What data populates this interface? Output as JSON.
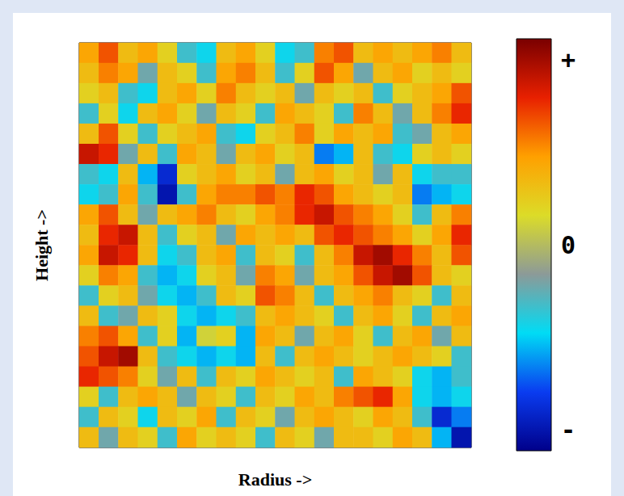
{
  "chart_data": {
    "type": "heatmap",
    "xlabel": "Radius ->",
    "ylabel": "Height ->",
    "tick_labels": false,
    "cells": [
      [
        0.4,
        0.6,
        0.3,
        0.4,
        0.2,
        -0.3,
        -0.4,
        0.3,
        0.4,
        0.2,
        -0.4,
        -0.3,
        0.5,
        0.6,
        0.3,
        0.4,
        0.3,
        0.4,
        0.5,
        0.3
      ],
      [
        0.3,
        0.5,
        0.4,
        -0.2,
        0.3,
        0.2,
        -0.3,
        0.4,
        0.5,
        0.3,
        -0.3,
        0.2,
        0.6,
        0.4,
        -0.2,
        0.3,
        0.4,
        0.2,
        0.3,
        0.2
      ],
      [
        0.2,
        0.3,
        -0.3,
        -0.4,
        0.3,
        0.4,
        0.2,
        0.5,
        0.3,
        0.2,
        0.3,
        -0.2,
        0.3,
        0.2,
        0.3,
        -0.3,
        0.2,
        0.3,
        0.4,
        0.6
      ],
      [
        -0.3,
        0.2,
        -0.4,
        0.3,
        0.4,
        0.2,
        -0.2,
        0.3,
        0.2,
        -0.3,
        0.4,
        0.3,
        0.2,
        -0.3,
        0.5,
        0.3,
        -0.2,
        0.3,
        0.5,
        0.7
      ],
      [
        0.3,
        0.6,
        0.2,
        -0.3,
        0.2,
        0.3,
        0.4,
        -0.3,
        -0.4,
        0.2,
        0.3,
        0.5,
        0.2,
        0.4,
        0.3,
        0.4,
        -0.3,
        -0.2,
        0.3,
        0.4
      ],
      [
        0.8,
        0.7,
        -0.2,
        0.3,
        -0.3,
        0.4,
        0.3,
        -0.2,
        0.3,
        0.4,
        0.2,
        0.3,
        -0.6,
        -0.5,
        0.3,
        -0.3,
        -0.4,
        0.2,
        0.3,
        0.2
      ],
      [
        -0.3,
        -0.4,
        0.3,
        -0.5,
        -0.8,
        0.2,
        0.3,
        0.4,
        0.2,
        0.3,
        -0.2,
        0.3,
        0.4,
        0.2,
        0.3,
        -0.2,
        0.3,
        -0.4,
        -0.3,
        -0.3
      ],
      [
        -0.4,
        -0.3,
        0.4,
        -0.3,
        -0.9,
        -0.3,
        0.4,
        0.5,
        0.5,
        0.6,
        0.5,
        0.7,
        0.6,
        0.4,
        0.3,
        0.2,
        0.3,
        -0.6,
        -0.5,
        -0.4
      ],
      [
        0.4,
        0.6,
        0.3,
        -0.2,
        0.3,
        0.4,
        0.5,
        0.3,
        0.2,
        0.4,
        0.5,
        0.7,
        0.8,
        0.6,
        0.5,
        0.4,
        0.2,
        -0.3,
        0.3,
        0.5
      ],
      [
        0.3,
        0.7,
        0.8,
        0.3,
        -0.3,
        0.2,
        0.3,
        -0.2,
        0.4,
        0.3,
        0.4,
        0.3,
        0.6,
        0.7,
        0.6,
        0.5,
        0.4,
        0.2,
        0.4,
        0.7
      ],
      [
        0.4,
        0.8,
        0.7,
        0.3,
        -0.4,
        -0.3,
        0.3,
        0.4,
        -0.3,
        0.3,
        0.2,
        -0.3,
        0.3,
        0.5,
        0.8,
        0.9,
        0.7,
        0.5,
        0.3,
        0.6
      ],
      [
        0.2,
        0.5,
        0.4,
        -0.3,
        -0.5,
        -0.4,
        0.2,
        0.3,
        -0.2,
        0.5,
        0.4,
        -0.2,
        0.3,
        0.4,
        0.6,
        0.8,
        0.9,
        0.6,
        0.3,
        0.2
      ],
      [
        -0.3,
        0.2,
        0.3,
        -0.2,
        -0.4,
        -0.5,
        -0.3,
        0.3,
        0.2,
        0.6,
        0.5,
        0.3,
        -0.3,
        0.3,
        0.4,
        0.5,
        0.3,
        0.2,
        -0.3,
        0.3
      ],
      [
        0.3,
        -0.3,
        -0.2,
        0.3,
        0.2,
        -0.4,
        -0.5,
        -0.4,
        -0.3,
        0.3,
        0.4,
        0.3,
        0.2,
        -0.3,
        0.3,
        0.4,
        0.2,
        -0.3,
        0.3,
        0.4
      ],
      [
        0.5,
        0.6,
        0.4,
        -0.3,
        0.2,
        -0.5,
        0.1,
        0.2,
        -0.5,
        0.4,
        0.3,
        -0.2,
        0.3,
        0.4,
        0.2,
        -0.3,
        0.3,
        0.4,
        -0.2,
        0.3
      ],
      [
        0.6,
        0.8,
        0.9,
        0.3,
        -0.3,
        -0.4,
        -0.5,
        -0.4,
        -0.5,
        0.3,
        -0.3,
        0.3,
        0.4,
        0.3,
        0.2,
        0.3,
        0.4,
        0.3,
        0.2,
        -0.3
      ],
      [
        0.7,
        0.6,
        0.5,
        0.2,
        -0.2,
        0.3,
        -0.3,
        0.3,
        0.2,
        0.4,
        0.3,
        0.2,
        0.3,
        -0.3,
        0.4,
        0.3,
        0.2,
        -0.4,
        -0.5,
        -0.3
      ],
      [
        0.2,
        -0.3,
        0.3,
        0.4,
        0.3,
        -0.2,
        0.3,
        0.2,
        -0.3,
        0.3,
        0.2,
        0.4,
        0.3,
        0.5,
        0.6,
        0.7,
        0.4,
        -0.4,
        -0.5,
        -0.4
      ],
      [
        -0.3,
        0.3,
        0.2,
        -0.4,
        0.3,
        0.2,
        0.4,
        -0.3,
        0.3,
        0.2,
        -0.2,
        0.3,
        0.4,
        0.3,
        0.2,
        0.4,
        0.3,
        -0.3,
        -0.8,
        -0.6
      ],
      [
        0.3,
        -0.2,
        0.3,
        0.2,
        -0.3,
        0.4,
        0.2,
        0.3,
        0.2,
        -0.3,
        0.3,
        0.2,
        -0.2,
        0.3,
        0.3,
        0.2,
        0.4,
        0.3,
        -0.5,
        -0.9
      ]
    ],
    "color_range": [
      -1,
      1
    ],
    "color_ticks": [
      {
        "value": 0.9,
        "label": "+"
      },
      {
        "value": 0,
        "label": "0"
      },
      {
        "value": -0.9,
        "label": "-"
      }
    ]
  }
}
